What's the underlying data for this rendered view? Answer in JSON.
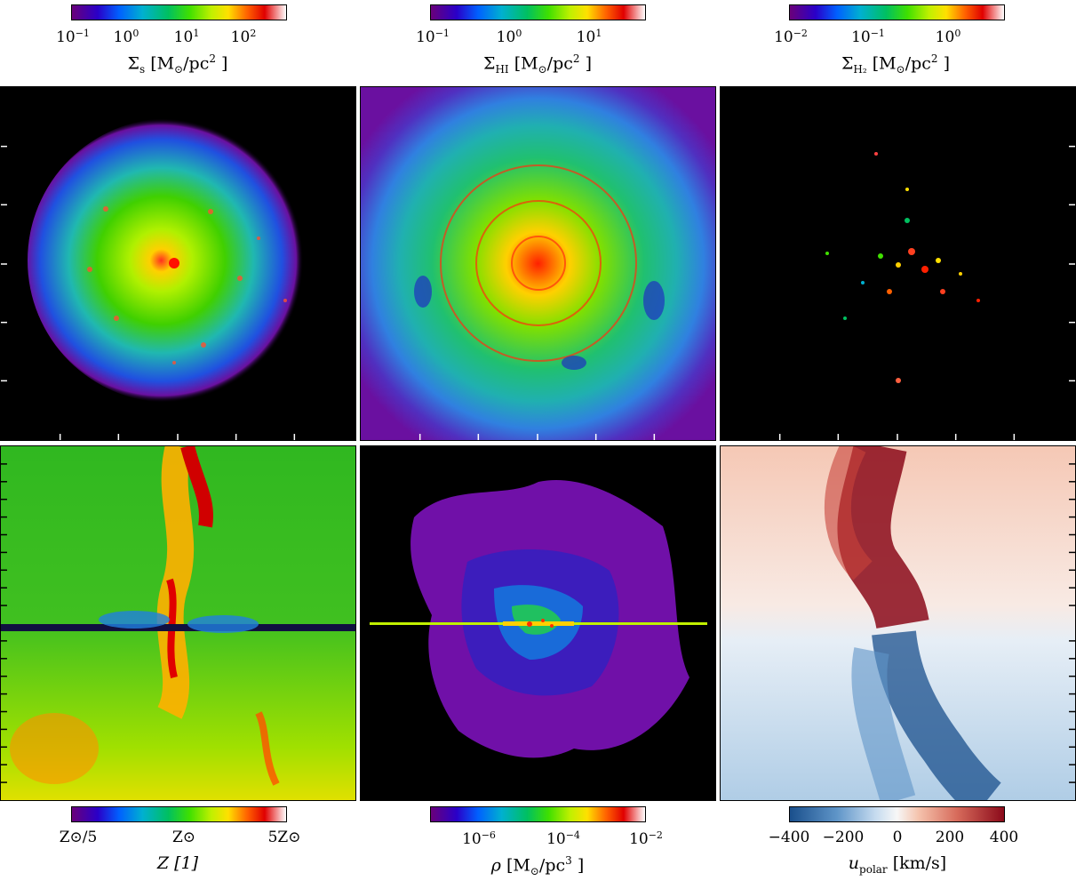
{
  "colorbars": {
    "top": [
      {
        "ticks": [
          "10",
          "10",
          "10",
          "10"
        ],
        "exps": [
          "−1",
          "0",
          "1",
          "2"
        ],
        "label_main": "Σ",
        "label_sub": "s",
        "label_unit": " [M",
        "label_odot": "⊙",
        "label_rest": "/pc",
        "label_sup": "2",
        "label_close": " ]"
      },
      {
        "ticks": [
          "10",
          "10",
          "10"
        ],
        "exps": [
          "−1",
          "0",
          "1"
        ],
        "label_main": "Σ",
        "label_sub": "HI",
        "label_unit": " [M",
        "label_odot": "⊙",
        "label_rest": "/pc",
        "label_sup": "2",
        "label_close": " ]"
      },
      {
        "ticks": [
          "10",
          "10",
          "10"
        ],
        "exps": [
          "−2",
          "−1",
          "0"
        ],
        "label_main": "Σ",
        "label_sub": "H₂",
        "label_unit": " [M",
        "label_odot": "⊙",
        "label_rest": "/pc",
        "label_sup": "2",
        "label_close": " ]"
      }
    ],
    "bottom": [
      {
        "ticks": [
          "Z⊙/5",
          "Z⊙",
          "5Z⊙"
        ],
        "label": "Z [1]"
      },
      {
        "ticks": [
          "10",
          "10",
          "10"
        ],
        "exps": [
          "−6",
          "−4",
          "−2"
        ],
        "label_main": "ρ",
        "label_unit": " [M",
        "label_odot": "⊙",
        "label_rest": "/pc",
        "label_sup": "3",
        "label_close": " ]"
      },
      {
        "ticks": [
          "−400",
          "−200",
          "0",
          "200",
          "400"
        ],
        "label_main": "u",
        "label_sub": "polar",
        "label_unit": " [km/s]"
      }
    ]
  },
  "colors": {
    "rainbow": [
      "#6a007a",
      "#2a00c8",
      "#0060ff",
      "#00b0d0",
      "#00c060",
      "#40e000",
      "#c0f000",
      "#ffe000",
      "#ff6000",
      "#e00000",
      "#ffffff"
    ],
    "diverging": [
      "#1a4f8c",
      "#5f95c8",
      "#c6dbef",
      "#f7f7f7",
      "#f5c3ad",
      "#d76b5b",
      "#8b0a1a"
    ]
  }
}
